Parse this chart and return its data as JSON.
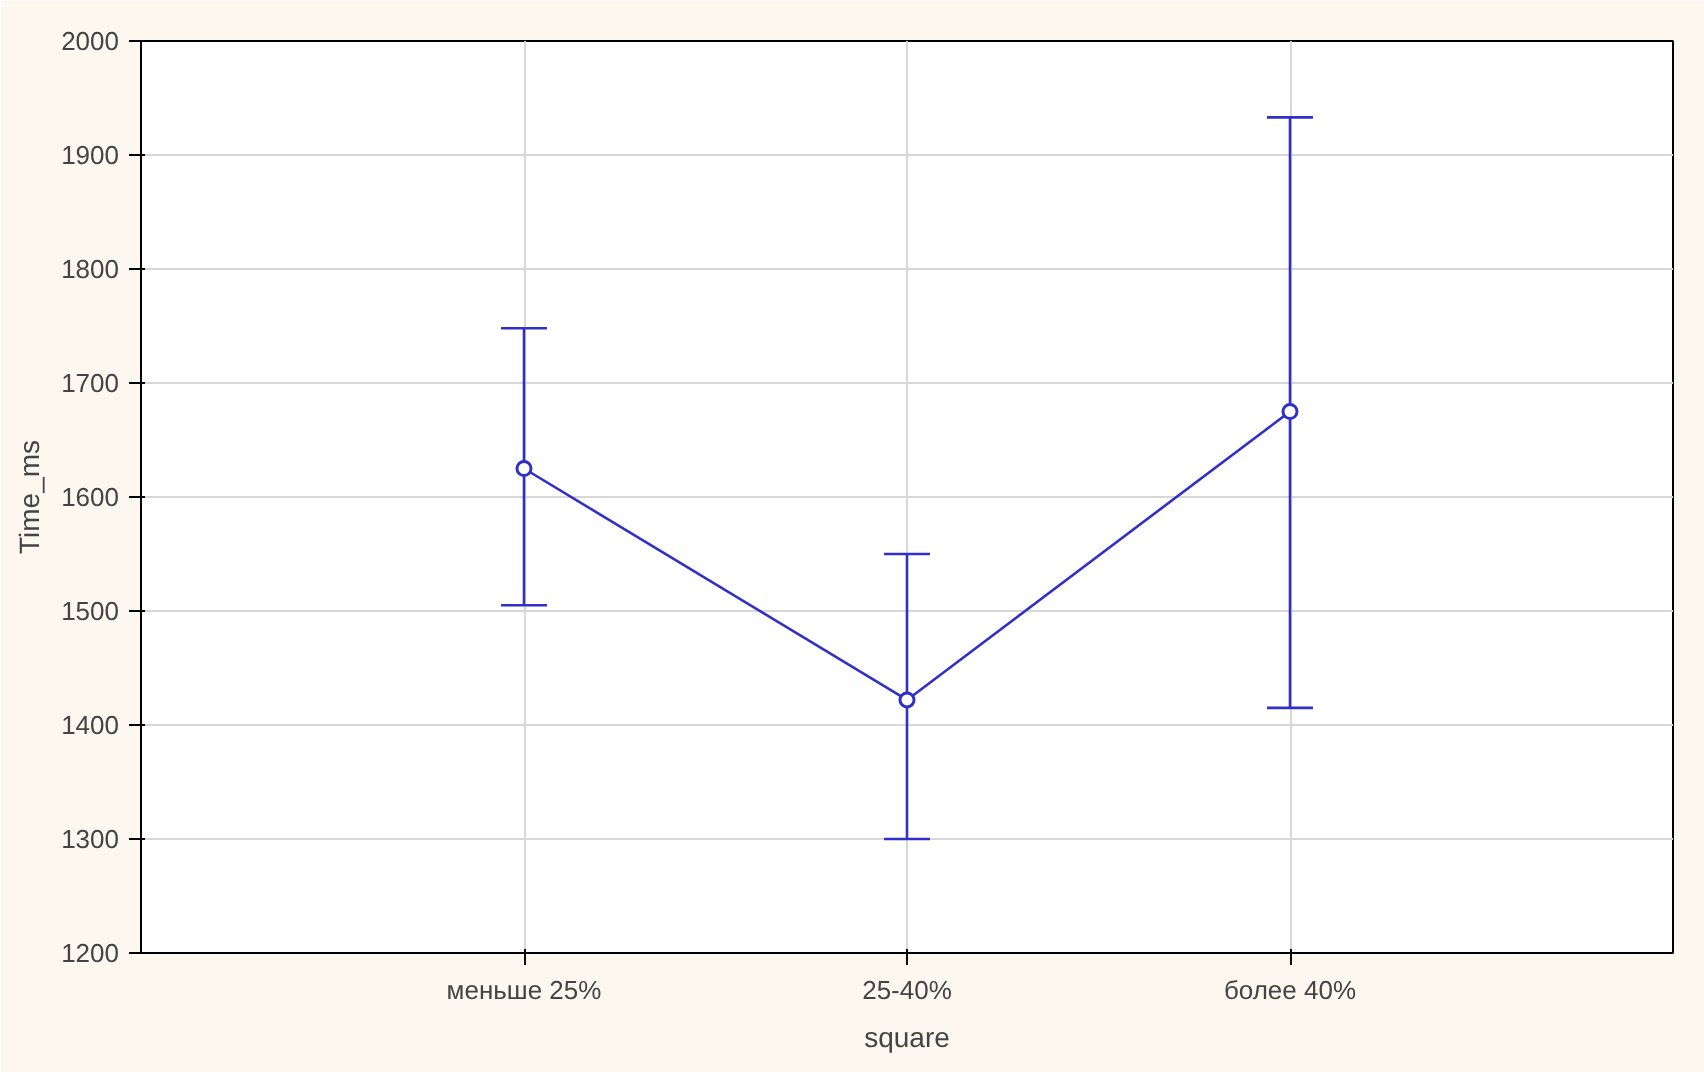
{
  "chart_data": {
    "type": "line",
    "xlabel": "square",
    "ylabel": "Time_ms",
    "categories": [
      "меньше 25%",
      "25-40%",
      "более 40%"
    ],
    "series": [
      {
        "color": "#3030c8",
        "values": [
          1625,
          1422,
          1675
        ],
        "errors": [
          [
            1505,
            1748
          ],
          [
            1300,
            1550
          ],
          [
            1415,
            1933
          ]
        ]
      }
    ],
    "ylim": [
      1200,
      2000
    ],
    "yticks": [
      1200,
      1300,
      1400,
      1500,
      1600,
      1700,
      1800,
      1900,
      2000
    ],
    "grid": true,
    "marker": "circle",
    "line_style": "solid"
  }
}
